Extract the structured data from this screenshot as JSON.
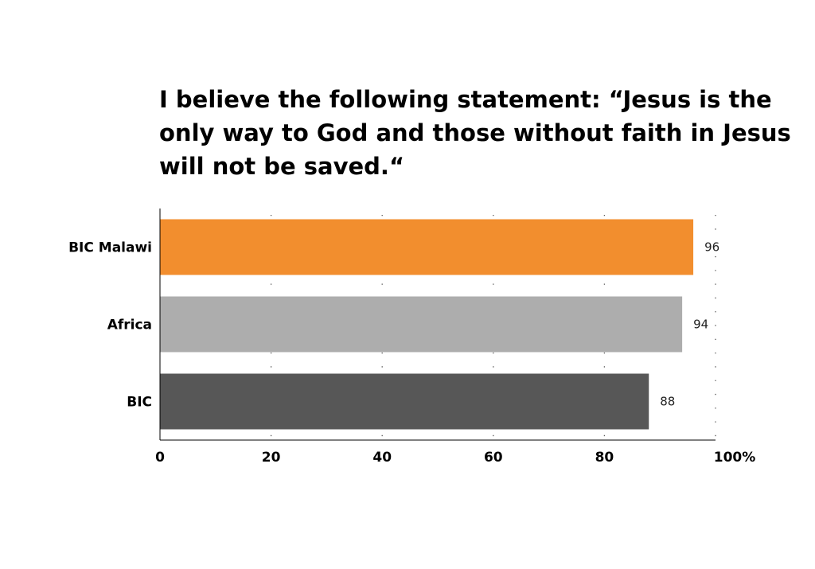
{
  "chart_data": {
    "type": "bar",
    "orientation": "horizontal",
    "title": "I believe the following statement: “Jesus is the only way to God and those without faith in Jesus will not be saved.“",
    "categories": [
      "BIC Malawi",
      "Africa",
      "BIC"
    ],
    "values": [
      96,
      94,
      88
    ],
    "data_labels": [
      "96",
      "94",
      "88"
    ],
    "colors": [
      "#F28E2E",
      "#ADADAD",
      "#575757"
    ],
    "xlim": [
      0,
      100
    ],
    "xticks": [
      0,
      20,
      40,
      60,
      80,
      100
    ],
    "xtick_labels": [
      "0",
      "20",
      "40",
      "60",
      "80",
      "100%"
    ],
    "xlabel": "",
    "ylabel": "",
    "grid": "vertical dotted",
    "legend": "none"
  }
}
